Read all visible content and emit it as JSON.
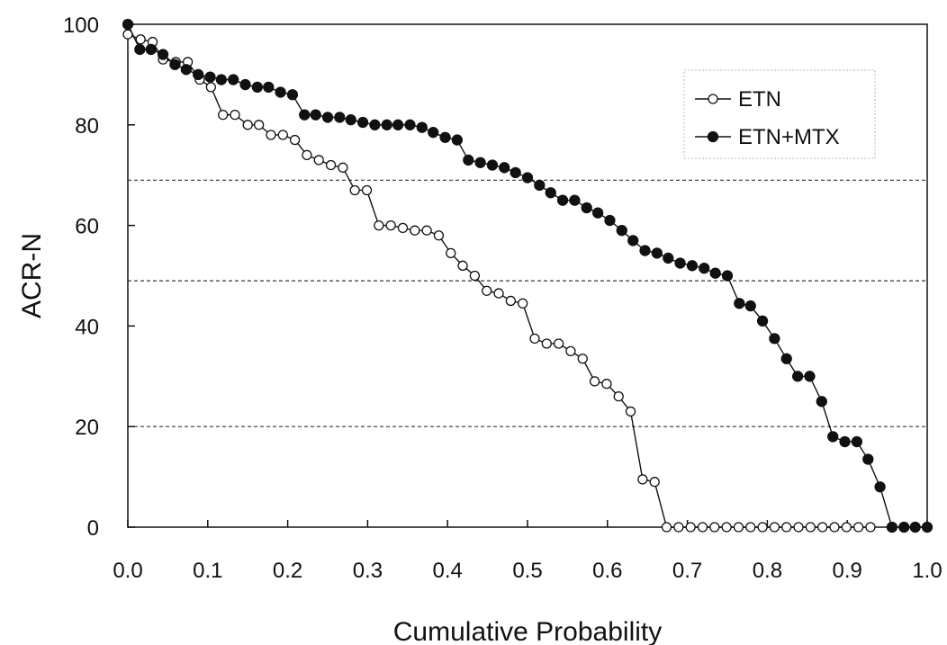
{
  "chart_data": {
    "type": "line",
    "xlabel": "Cumulative Probability",
    "ylabel": "ACR-N",
    "xlim": [
      0,
      1
    ],
    "ylim": [
      0,
      100
    ],
    "x_ticks": [
      "0.0",
      "0.1",
      "0.2",
      "0.3",
      "0.4",
      "0.5",
      "0.6",
      "0.7",
      "0.8",
      "0.9",
      "1.0"
    ],
    "y_ticks": [
      "0",
      "20",
      "40",
      "60",
      "80",
      "100"
    ],
    "reference_lines": [
      20,
      49,
      69
    ],
    "grid": false,
    "legend_position": "top-right",
    "series": [
      {
        "name": "ETN",
        "marker": "open-circle",
        "x": [
          0.0,
          0.016,
          0.031,
          0.044,
          0.06,
          0.075,
          0.09,
          0.104,
          0.119,
          0.134,
          0.15,
          0.164,
          0.179,
          0.194,
          0.209,
          0.224,
          0.239,
          0.254,
          0.269,
          0.284,
          0.299,
          0.314,
          0.329,
          0.344,
          0.359,
          0.374,
          0.389,
          0.404,
          0.419,
          0.434,
          0.449,
          0.464,
          0.479,
          0.494,
          0.509,
          0.524,
          0.539,
          0.554,
          0.569,
          0.584,
          0.599,
          0.614,
          0.629,
          0.644,
          0.659,
          0.674,
          0.689,
          0.704,
          0.719,
          0.734,
          0.749,
          0.764,
          0.779,
          0.794,
          0.809,
          0.824,
          0.839,
          0.854,
          0.869,
          0.884,
          0.899,
          0.914,
          0.929
        ],
        "y": [
          98,
          97,
          96.5,
          93,
          92.5,
          92.5,
          89,
          87.5,
          82,
          82,
          80,
          80,
          78,
          78,
          77,
          74,
          73,
          72,
          71.5,
          67,
          67,
          60,
          60,
          59.5,
          59,
          59,
          58,
          54.5,
          52,
          50,
          47,
          46.5,
          45,
          44.5,
          37.5,
          36.5,
          36.5,
          35,
          33.5,
          29,
          28.5,
          26,
          23,
          9.5,
          9,
          0,
          0,
          0,
          0,
          0,
          0,
          0,
          0,
          0,
          0,
          0,
          0,
          0,
          0,
          0,
          0,
          0,
          0
        ]
      },
      {
        "name": "ETN+MTX",
        "marker": "filled-circle",
        "x": [
          0.0,
          0.015,
          0.029,
          0.044,
          0.059,
          0.073,
          0.088,
          0.103,
          0.117,
          0.132,
          0.147,
          0.162,
          0.176,
          0.191,
          0.206,
          0.221,
          0.235,
          0.25,
          0.265,
          0.279,
          0.294,
          0.309,
          0.324,
          0.338,
          0.353,
          0.368,
          0.382,
          0.397,
          0.412,
          0.426,
          0.441,
          0.456,
          0.471,
          0.485,
          0.5,
          0.515,
          0.529,
          0.544,
          0.559,
          0.574,
          0.588,
          0.603,
          0.618,
          0.632,
          0.647,
          0.662,
          0.676,
          0.691,
          0.706,
          0.721,
          0.735,
          0.75,
          0.765,
          0.779,
          0.794,
          0.809,
          0.824,
          0.838,
          0.853,
          0.868,
          0.882,
          0.897,
          0.912,
          0.926,
          0.941,
          0.956,
          0.971,
          0.985,
          1.0
        ],
        "y": [
          100,
          95,
          95,
          94,
          92,
          91,
          90,
          89.5,
          89,
          89,
          88,
          87.5,
          87.5,
          86.5,
          86,
          82,
          82,
          81.5,
          81.5,
          81,
          80.5,
          80,
          80,
          80,
          80,
          79.5,
          78.5,
          77.5,
          77,
          73,
          72.5,
          72,
          71.5,
          70.5,
          69.5,
          68,
          66.5,
          65,
          65,
          63.5,
          62.5,
          61,
          59,
          57,
          55,
          54.5,
          53.5,
          52.5,
          52,
          51.5,
          50.5,
          50,
          44.5,
          44,
          41,
          37.5,
          33.5,
          30,
          30,
          25,
          18,
          17,
          17,
          13.5,
          8,
          0,
          0,
          0,
          0
        ]
      }
    ]
  }
}
